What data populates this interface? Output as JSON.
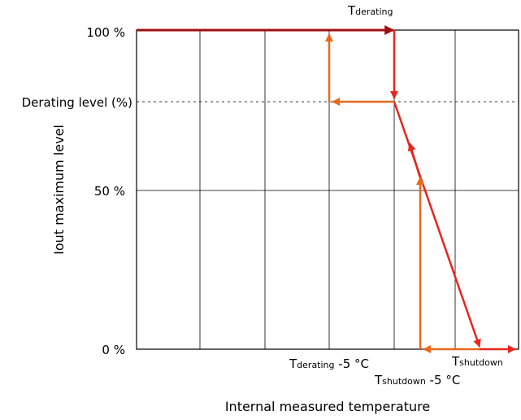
{
  "diagram": {
    "y_axis_label": "Iout maximum level",
    "x_axis_label": "Internal measured temperature",
    "levels": {
      "top": "100 %",
      "derating": "Derating level (%)",
      "half": "50 %",
      "zero": "0 %"
    },
    "markers": {
      "t_derating": {
        "main": "T",
        "sub": "derating"
      },
      "t_derating_minus5": {
        "main": "T",
        "sub": "derating",
        "suffix": " -5 °C"
      },
      "t_shutdown": {
        "main": "T",
        "sub": "shutdown"
      },
      "t_shutdown_minus5": {
        "main": "T",
        "sub": "shutdown",
        "suffix": " -5 °C"
      }
    },
    "colors": {
      "heating_path": "#e8251e",
      "top_segment": "#a01010",
      "cooling_path": "#e8691c",
      "grid": "#000000"
    }
  }
}
